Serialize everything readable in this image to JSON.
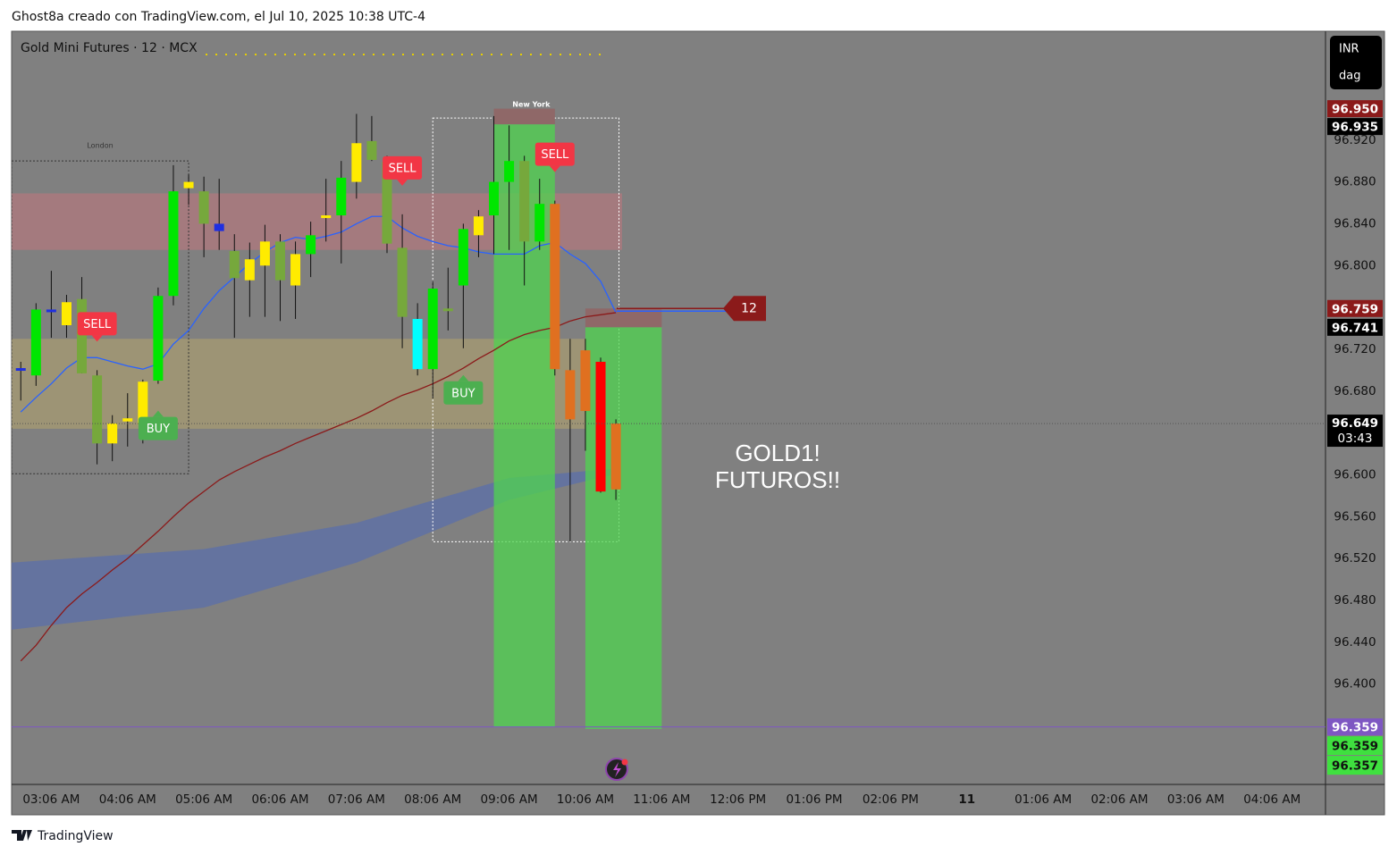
{
  "header": "Ghost8a creado con TradingView.com, el Jul 10, 2025 10:38 UTC-4",
  "footer": "TradingView",
  "chart_data": {
    "type": "candlestick",
    "title": "Gold Mini Futures · 12 · MCX",
    "currency": "INR",
    "unit_label": "dag",
    "xlim": [
      -2.6,
      83.5
    ],
    "ylim": [
      96.304,
      97.024
    ],
    "xticks": [
      {
        "value": 0,
        "label": "03:06 AM"
      },
      {
        "value": 5,
        "label": "04:06 AM"
      },
      {
        "value": 10,
        "label": "05:06 AM"
      },
      {
        "value": 15,
        "label": "06:06 AM"
      },
      {
        "value": 20,
        "label": "07:06 AM"
      },
      {
        "value": 25,
        "label": "08:06 AM"
      },
      {
        "value": 30,
        "label": "09:06 AM"
      },
      {
        "value": 35,
        "label": "10:06 AM"
      },
      {
        "value": 40,
        "label": "11:06 AM"
      },
      {
        "value": 45,
        "label": "12:06 PM"
      },
      {
        "value": 50,
        "label": "01:06 PM"
      },
      {
        "value": 55,
        "label": "02:06 PM"
      },
      {
        "value": 60,
        "label": "11"
      },
      {
        "value": 65,
        "label": "01:06 AM"
      },
      {
        "value": 70,
        "label": "02:06 AM"
      },
      {
        "value": 75,
        "label": "03:06 AM"
      },
      {
        "value": 80,
        "label": "04:06 AM"
      }
    ],
    "yticks": [
      {
        "value": 96.92,
        "label": "96.920"
      },
      {
        "value": 96.88,
        "label": "96.880"
      },
      {
        "value": 96.84,
        "label": "96.840"
      },
      {
        "value": 96.8,
        "label": "96.800"
      },
      {
        "value": 96.72,
        "label": "96.720"
      },
      {
        "value": 96.68,
        "label": "96.680"
      },
      {
        "value": 96.6,
        "label": "96.600"
      },
      {
        "value": 96.56,
        "label": "96.560"
      },
      {
        "value": 96.52,
        "label": "96.520"
      },
      {
        "value": 96.48,
        "label": "96.480"
      },
      {
        "value": 96.44,
        "label": "96.440"
      },
      {
        "value": 96.4,
        "label": "96.400"
      }
    ],
    "x": [
      -2,
      -1,
      0,
      1,
      2,
      3,
      4,
      5,
      6,
      7,
      8,
      9,
      10,
      11,
      12,
      13,
      14,
      15,
      16,
      17,
      18,
      19,
      20,
      21,
      22,
      23,
      24,
      25,
      26,
      27,
      28,
      29,
      30,
      31,
      32,
      33,
      34,
      35,
      36,
      37
    ],
    "open": [
      96.702,
      96.695,
      96.758,
      96.765,
      96.768,
      96.695,
      96.649,
      96.654,
      96.689,
      96.69,
      96.771,
      96.88,
      96.871,
      96.84,
      96.814,
      96.806,
      96.823,
      96.823,
      96.811,
      96.811,
      96.848,
      96.848,
      96.917,
      96.919,
      96.899,
      96.817,
      96.701,
      96.701,
      96.759,
      96.781,
      96.847,
      96.848,
      96.88,
      96.9,
      96.823,
      96.859,
      96.7,
      96.719,
      96.708,
      96.586
    ],
    "high": [
      96.708,
      96.764,
      96.795,
      96.772,
      96.789,
      96.7,
      96.657,
      96.678,
      96.691,
      96.779,
      96.896,
      96.887,
      96.885,
      96.883,
      96.83,
      96.822,
      96.839,
      96.83,
      96.823,
      96.842,
      96.883,
      96.9,
      96.945,
      96.943,
      96.905,
      96.849,
      96.764,
      96.785,
      96.798,
      96.84,
      96.853,
      96.943,
      96.934,
      96.905,
      96.883,
      96.862,
      96.73,
      96.73,
      96.712,
      96.653
    ],
    "low": [
      96.671,
      96.685,
      96.731,
      96.731,
      96.697,
      96.61,
      96.613,
      96.627,
      96.63,
      96.687,
      96.762,
      96.858,
      96.808,
      96.815,
      96.731,
      96.751,
      96.751,
      96.747,
      96.749,
      96.789,
      96.823,
      96.802,
      96.864,
      96.9,
      96.812,
      96.721,
      96.695,
      96.673,
      96.738,
      96.721,
      96.808,
      96.811,
      96.815,
      96.781,
      96.815,
      96.695,
      96.536,
      96.623,
      96.583,
      96.576
    ],
    "close": [
      96.701,
      96.758,
      96.756,
      96.743,
      96.697,
      96.63,
      96.63,
      96.651,
      96.648,
      96.771,
      96.871,
      96.874,
      96.84,
      96.833,
      96.788,
      96.786,
      96.8,
      96.786,
      96.781,
      96.829,
      96.846,
      96.884,
      96.88,
      96.901,
      96.821,
      96.751,
      96.749,
      96.778,
      96.758,
      96.835,
      96.829,
      96.88,
      96.9,
      96.823,
      96.859,
      96.701,
      96.653,
      96.661,
      96.584,
      96.649
    ],
    "colors": [
      "#1f2fe0",
      "#00e600",
      "#1f2fe0",
      "#ffeb00",
      "#76a83c",
      "#76a83c",
      "#ffeb00",
      "#ffeb00",
      "#ffeb00",
      "#00e600",
      "#00e600",
      "#ffeb00",
      "#76a83c",
      "#1f2fe0",
      "#76a83c",
      "#ffeb00",
      "#ffeb00",
      "#76a83c",
      "#ffeb00",
      "#00e600",
      "#ffeb00",
      "#00e600",
      "#ffeb00",
      "#76a83c",
      "#76a83c",
      "#76a83c",
      "#00ffff",
      "#00e600",
      "#76a83c",
      "#00e600",
      "#ffeb00",
      "#00e600",
      "#00e600",
      "#76a83c",
      "#00e600",
      "#e07020",
      "#e07020",
      "#e07020",
      "#ff0000",
      "#e07020"
    ],
    "lines": [
      {
        "color": "#2962ff",
        "values": [
          96.66,
          96.674,
          96.687,
          96.702,
          96.712,
          96.712,
          96.708,
          96.704,
          96.701,
          96.706,
          96.725,
          96.738,
          96.759,
          96.776,
          96.789,
          96.802,
          96.813,
          96.822,
          96.827,
          96.825,
          96.828,
          96.832,
          96.84,
          96.847,
          96.847,
          96.836,
          96.828,
          96.823,
          96.819,
          96.817,
          96.813,
          96.811,
          96.811,
          96.811,
          96.819,
          96.822,
          96.811,
          96.802,
          96.785,
          96.755
        ]
      },
      {
        "color": "#8b1a1a",
        "values": [
          96.422,
          96.437,
          96.456,
          96.473,
          96.486,
          96.497,
          96.509,
          96.52,
          96.533,
          96.546,
          96.56,
          96.573,
          96.584,
          96.595,
          96.603,
          96.61,
          96.617,
          96.623,
          96.63,
          96.636,
          96.642,
          96.648,
          96.654,
          96.661,
          96.669,
          96.676,
          96.681,
          96.687,
          96.694,
          96.702,
          96.711,
          96.719,
          96.728,
          96.734,
          96.738,
          96.741,
          96.747,
          96.751,
          96.753,
          96.755
        ]
      }
    ],
    "cloud": {
      "color": "#5d6fa6",
      "x": [
        -2.6,
        10,
        20,
        30,
        37
      ],
      "upper": [
        96.516,
        96.529,
        96.554,
        96.597,
        96.606
      ],
      "lower": [
        96.452,
        96.473,
        96.516,
        96.576,
        96.601
      ]
    },
    "zones": [
      {
        "color": "#b0787e",
        "x": [
          -2.6,
          37.4
        ],
        "y": [
          96.815,
          96.869
        ]
      },
      {
        "color": "#a79b72",
        "x": [
          -2.6,
          35
        ],
        "y": [
          96.644,
          96.73
        ]
      }
    ],
    "sessions": [
      {
        "label": "London",
        "color": "#333333",
        "x": [
          -2.6,
          9
        ],
        "y": [
          96.601,
          96.9
        ]
      },
      {
        "label": "New York",
        "color": "#ffffff",
        "x": [
          25,
          37.2
        ],
        "y": [
          96.536,
          96.941
        ]
      }
    ],
    "signals": [
      {
        "label": "SELL",
        "x": 3
      },
      {
        "label": "BUY",
        "x": 7
      },
      {
        "label": "SELL",
        "x": 23
      },
      {
        "label": "BUY",
        "x": 27
      },
      {
        "label": "SELL",
        "x": 33
      }
    ],
    "trades": [
      {
        "x": [
          29,
          33
        ],
        "stop": {
          "value": 96.95,
          "label": "96.950"
        },
        "entry": {
          "value": 96.935,
          "label": "96.935"
        },
        "target": {
          "value": 96.359,
          "label": "96.359"
        }
      },
      {
        "x": [
          35,
          40
        ],
        "stop": {
          "value": 96.759,
          "label": "96.759"
        },
        "entry": {
          "value": 96.741,
          "label": "96.741"
        },
        "target": {
          "value": 96.357,
          "label": "96.357"
        }
      }
    ],
    "line_label": "12",
    "horizontal_line": {
      "value": 96.359,
      "label": "96.359",
      "color": "#7e57c2"
    },
    "current_price": {
      "value": 96.649,
      "label": "96.649",
      "countdown": "03:43"
    },
    "annotation": [
      "GOLD1!",
      "FUTUROS!!"
    ]
  }
}
